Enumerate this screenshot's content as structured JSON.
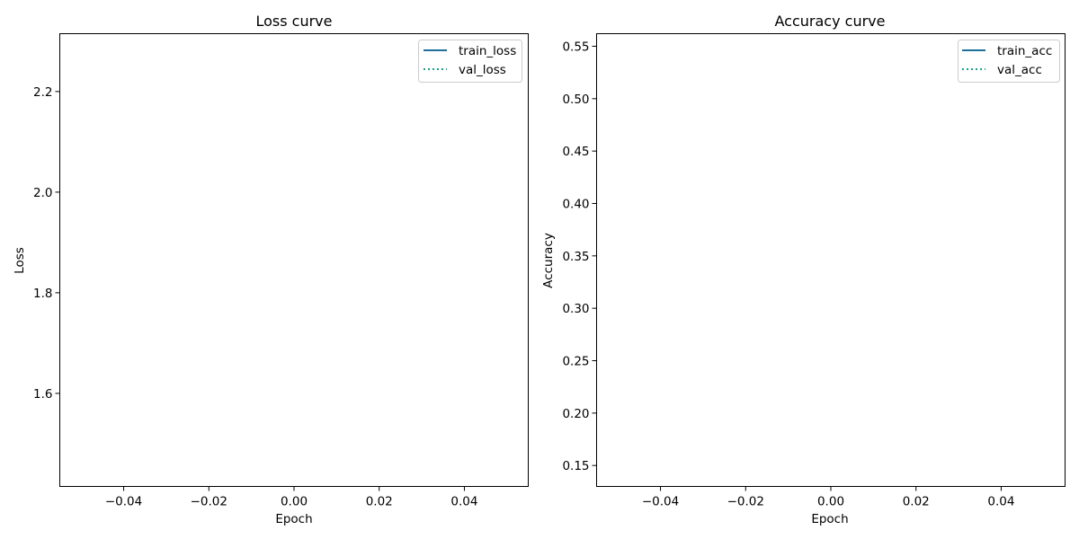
{
  "chart_data": [
    {
      "type": "line",
      "title": "Loss curve",
      "xlabel": "Epoch",
      "ylabel": "Loss",
      "xlim": [
        -0.055,
        0.055
      ],
      "ylim": [
        1.415,
        2.315
      ],
      "xticks": [
        -0.04,
        -0.02,
        0.0,
        0.02,
        0.04
      ],
      "xtick_labels": [
        "−0.04",
        "−0.02",
        "0.00",
        "0.02",
        "0.04"
      ],
      "yticks": [
        1.6,
        1.8,
        2.0,
        2.2
      ],
      "ytick_labels": [
        "1.6",
        "1.8",
        "2.0",
        "2.2"
      ],
      "grid": false,
      "legend_position": "top-right",
      "series": [
        {
          "name": "train_loss",
          "x": [],
          "y": [],
          "color": "#1f6f9c",
          "style": "solid"
        },
        {
          "name": "val_loss",
          "x": [],
          "y": [],
          "color": "#19a38a",
          "style": "dotted"
        }
      ]
    },
    {
      "type": "line",
      "title": "Accuracy curve",
      "xlabel": "Epoch",
      "ylabel": "Accuracy",
      "xlim": [
        -0.055,
        0.055
      ],
      "ylim": [
        0.13,
        0.562
      ],
      "xticks": [
        -0.04,
        -0.02,
        0.0,
        0.02,
        0.04
      ],
      "xtick_labels": [
        "−0.04",
        "−0.02",
        "0.00",
        "0.02",
        "0.04"
      ],
      "yticks": [
        0.15,
        0.2,
        0.25,
        0.3,
        0.35,
        0.4,
        0.45,
        0.5,
        0.55
      ],
      "ytick_labels": [
        "0.15",
        "0.20",
        "0.25",
        "0.30",
        "0.35",
        "0.40",
        "0.45",
        "0.50",
        "0.55"
      ],
      "grid": false,
      "legend_position": "top-right",
      "series": [
        {
          "name": "train_acc",
          "x": [],
          "y": [],
          "color": "#1f6f9c",
          "style": "solid"
        },
        {
          "name": "val_acc",
          "x": [],
          "y": [],
          "color": "#19a38a",
          "style": "dotted"
        }
      ]
    }
  ]
}
